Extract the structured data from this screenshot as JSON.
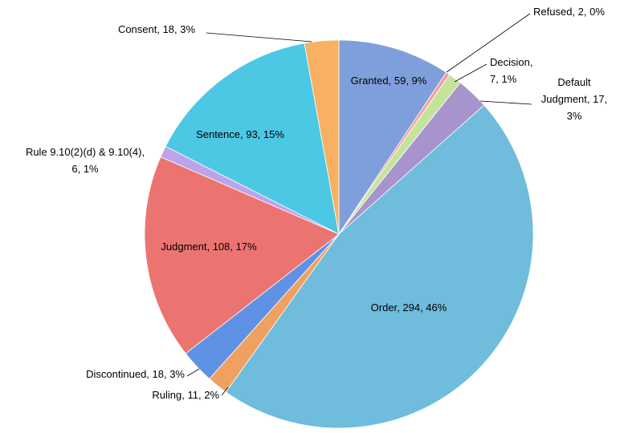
{
  "chart_data": {
    "type": "pie",
    "labels": [
      [
        "Granted, 59, 9%"
      ],
      [
        "Refused, 2, 0%"
      ],
      [
        "Decision,",
        "7, 1%"
      ],
      [
        "Default",
        "Judgment, 17,",
        "3%"
      ],
      [
        "Order, 294, 46%"
      ],
      [
        "Ruling, 11, 2%"
      ],
      [
        "Discontinued, 18, 3%"
      ],
      [
        "Judgment, 108, 17%"
      ],
      [
        "Rule 9.10(2)(d) & 9.10(4),",
        "6, 1%"
      ],
      [
        "Sentence, 93, 15%"
      ],
      [
        "Consent, 18, 3%"
      ]
    ],
    "values": [
      59,
      2,
      7,
      17,
      294,
      11,
      18,
      108,
      6,
      93,
      18
    ],
    "colors": [
      "#7f9fdc",
      "#f2a0a0",
      "#c4e49c",
      "#a894cc",
      "#6fbcdc",
      "#f0a060",
      "#5f92e4",
      "#ec7470",
      "#bca4e8",
      "#4cc8e4",
      "#f8b064"
    ]
  }
}
